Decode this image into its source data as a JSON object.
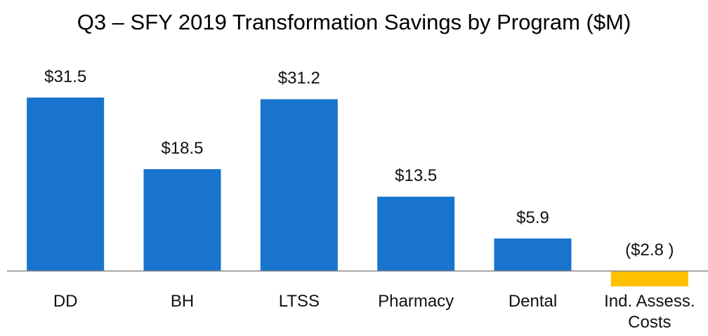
{
  "chart_data": {
    "type": "bar",
    "title": "Q3 – SFY 2019 Transformation Savings by Program ($M)",
    "categories": [
      "DD",
      "BH",
      "LTSS",
      "Pharmacy",
      "Dental",
      "Ind. Assess. Costs"
    ],
    "values": [
      31.5,
      18.5,
      31.2,
      13.5,
      5.9,
      -2.8
    ],
    "value_labels": [
      "$31.5",
      "$18.5",
      "$31.2",
      "$13.5",
      "$5.9",
      "($2.8 )"
    ],
    "colors": [
      "#1874cd",
      "#1874cd",
      "#1874cd",
      "#1874cd",
      "#1874cd",
      "#ffc000"
    ],
    "ylim": [
      -5,
      35
    ],
    "grid": false
  }
}
